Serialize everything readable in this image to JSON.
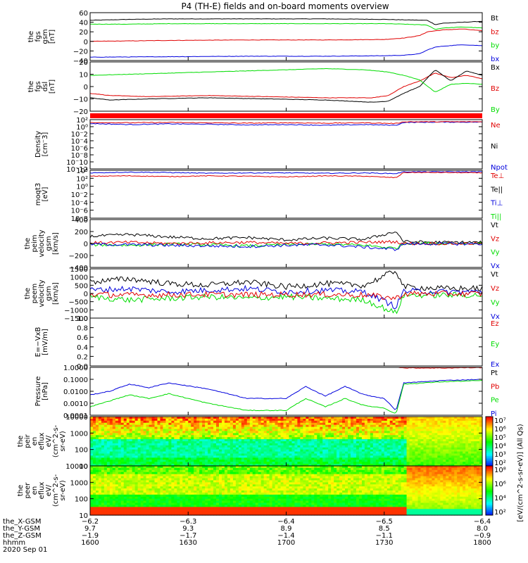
{
  "title": "P4 (TH-E) fields and on-board moments overview",
  "colors": {
    "black": "#000000",
    "red": "#e00000",
    "green": "#00dd00",
    "blue": "#0000dd",
    "strip": "#ff0000",
    "gridbg": "#ffffff"
  },
  "chart_data": [
    {
      "type": "line",
      "name": "fgs_gsm",
      "ylabel": [
        "the",
        "fgs",
        "gsm",
        "[nT]"
      ],
      "yticks": [
        "60",
        "40",
        "20",
        "0",
        "−20",
        "−40"
      ],
      "ylim": [
        -40,
        60
      ],
      "legend": [
        {
          "label": "Bt",
          "color": "#000000"
        },
        {
          "label": "bz",
          "color": "#e00000"
        },
        {
          "label": "by",
          "color": "#00dd00"
        },
        {
          "label": "bx",
          "color": "#0000dd"
        }
      ],
      "series": [
        {
          "name": "Bt",
          "color": "#000000",
          "x": [
            0,
            0.1,
            0.2,
            0.4,
            0.6,
            0.75,
            0.8,
            0.86,
            0.88,
            0.9,
            0.95,
            1.0
          ],
          "values": [
            44,
            46,
            47,
            47,
            47,
            46,
            45,
            44,
            35,
            38,
            40,
            42
          ]
        },
        {
          "name": "bz",
          "color": "#e00000",
          "x": [
            0,
            0.2,
            0.4,
            0.6,
            0.75,
            0.8,
            0.84,
            0.86,
            0.88,
            0.9,
            0.95,
            1.0
          ],
          "values": [
            0,
            2,
            3,
            3,
            4,
            7,
            12,
            20,
            22,
            24,
            26,
            22
          ]
        },
        {
          "name": "by",
          "color": "#00dd00",
          "x": [
            0,
            0.1,
            0.2,
            0.4,
            0.6,
            0.75,
            0.8,
            0.86,
            0.88,
            0.9,
            0.95,
            1.0
          ],
          "values": [
            36,
            36,
            37,
            37,
            37,
            37,
            36,
            34,
            25,
            28,
            30,
            28
          ]
        },
        {
          "name": "bx",
          "color": "#0000dd",
          "x": [
            0,
            0.2,
            0.4,
            0.6,
            0.75,
            0.8,
            0.84,
            0.86,
            0.88,
            0.9,
            0.95,
            1.0
          ],
          "values": [
            -33,
            -32,
            -31,
            -31,
            -30,
            -29,
            -26,
            -18,
            -12,
            -10,
            -7,
            -9
          ]
        }
      ]
    },
    {
      "type": "line",
      "name": "fgs_dsl",
      "ylabel": [
        "the",
        "fgs",
        "dsl",
        "[nT]"
      ],
      "yticks": [
        "20",
        "10",
        "0",
        "−10",
        "−20"
      ],
      "ylim": [
        -22,
        22
      ],
      "legend": [
        {
          "label": "Bx",
          "color": "#000000"
        },
        {
          "label": "Bz",
          "color": "#e00000"
        },
        {
          "label": "By",
          "color": "#00dd00"
        }
      ],
      "series": [
        {
          "name": "Bz",
          "color": "#e00000",
          "x": [
            0,
            0.05,
            0.15,
            0.3,
            0.45,
            0.6,
            0.72,
            0.76,
            0.8,
            0.84,
            0.88,
            0.92,
            0.96,
            1.0
          ],
          "values": [
            -6,
            -8,
            -9,
            -8,
            -9,
            -10,
            -10,
            -8,
            0,
            5,
            12,
            8,
            10,
            7
          ]
        },
        {
          "name": "Bx",
          "color": "#000000",
          "x": [
            0,
            0.05,
            0.15,
            0.3,
            0.45,
            0.6,
            0.72,
            0.76,
            0.8,
            0.84,
            0.88,
            0.92,
            0.96,
            1.0
          ],
          "values": [
            -10,
            -12,
            -11,
            -10,
            -11,
            -12,
            -14,
            -13,
            -6,
            0,
            15,
            5,
            14,
            10
          ]
        },
        {
          "name": "By",
          "color": "#00dd00",
          "x": [
            0,
            0.1,
            0.2,
            0.3,
            0.4,
            0.5,
            0.6,
            0.7,
            0.76,
            0.8,
            0.84,
            0.88,
            0.92,
            0.96,
            1.0
          ],
          "values": [
            10,
            11,
            12,
            13,
            14,
            15,
            16,
            15,
            13,
            10,
            6,
            -5,
            2,
            3,
            2
          ]
        }
      ]
    },
    {
      "type": "line",
      "name": "density",
      "ylabel": [
        "Density",
        "[cm⁻3]"
      ],
      "yticks": [
        "10²",
        "10⁰",
        "10⁻2",
        "10⁻4",
        "10⁻6",
        "10⁻8",
        "10⁻10",
        "10⁻12"
      ],
      "ylim": [
        -12,
        2
      ],
      "scale": "log",
      "legend": [
        {
          "label": "Ne",
          "color": "#e00000"
        },
        {
          "label": "Ni",
          "color": "#000000"
        },
        {
          "label": "Npot",
          "color": "#0000dd"
        }
      ],
      "series": [
        {
          "name": "Npot",
          "color": "#0000dd",
          "x": [
            0,
            0.1,
            0.2,
            0.3,
            0.4,
            0.5,
            0.6,
            0.7,
            0.78,
            0.8,
            0.9,
            1.0
          ],
          "values": [
            0.9,
            0.6,
            0.8,
            0.7,
            0.5,
            0.6,
            0.4,
            0.6,
            0.4,
            1.2,
            1.3,
            1.3
          ]
        },
        {
          "name": "Ne",
          "color": "#e00000",
          "x": [
            0,
            0.1,
            0.2,
            0.3,
            0.4,
            0.5,
            0.6,
            0.7,
            0.78,
            0.8,
            0.9,
            1.0
          ],
          "values": [
            1.2,
            1.1,
            1.2,
            1.1,
            1.0,
            1.1,
            1.0,
            1.1,
            0.9,
            1.4,
            1.4,
            1.4
          ]
        }
      ]
    },
    {
      "type": "line",
      "name": "moms_temp",
      "ylabel": [
        "moqt3",
        "[eV]"
      ],
      "yticks": [
        "10⁴",
        "10²",
        "10⁰",
        "10⁻2",
        "10⁻4",
        "10⁻6",
        "10⁻8"
      ],
      "ylim": [
        -9,
        4
      ],
      "scale": "log",
      "legend": [
        {
          "label": "Te⊥",
          "color": "#e00000"
        },
        {
          "label": "Te||",
          "color": "#000000"
        },
        {
          "label": "Ti⊥",
          "color": "#0000dd"
        },
        {
          "label": "Ti||",
          "color": "#00dd00"
        }
      ],
      "series": [
        {
          "name": "Ti",
          "color": "#0000dd",
          "x": [
            0,
            0.1,
            0.2,
            0.3,
            0.4,
            0.5,
            0.6,
            0.7,
            0.78,
            0.8,
            0.9,
            1.0
          ],
          "values": [
            3.3,
            3.5,
            3.4,
            3.2,
            3.3,
            3.3,
            3.2,
            3.3,
            3.1,
            3.6,
            3.6,
            3.6
          ]
        },
        {
          "name": "Te",
          "color": "#e00000",
          "x": [
            0,
            0.1,
            0.2,
            0.3,
            0.4,
            0.5,
            0.6,
            0.7,
            0.78,
            0.8,
            0.9,
            1.0
          ],
          "values": [
            2.4,
            2.5,
            2.3,
            2.5,
            2.4,
            2.2,
            2.5,
            2.4,
            2.0,
            3.4,
            3.4,
            3.3
          ]
        }
      ]
    },
    {
      "type": "line",
      "name": "peim_velocity",
      "ylabel": [
        "the",
        "peim",
        "velocity",
        "gsm",
        "[km/s]"
      ],
      "yticks": [
        "400",
        "200",
        "0",
        "−200",
        "−400"
      ],
      "ylim": [
        -400,
        400
      ],
      "legend": [
        {
          "label": "Vt",
          "color": "#000000"
        },
        {
          "label": "Vz",
          "color": "#e00000"
        },
        {
          "label": "Vy",
          "color": "#00dd00"
        },
        {
          "label": "Vx",
          "color": "#0000dd"
        }
      ],
      "series": [
        {
          "name": "Vt",
          "color": "#000000",
          "x": [
            0,
            0.1,
            0.2,
            0.3,
            0.4,
            0.5,
            0.6,
            0.7,
            0.78,
            0.8,
            0.9,
            1.0
          ],
          "values": [
            120,
            150,
            110,
            80,
            100,
            60,
            90,
            70,
            200,
            30,
            20,
            20
          ]
        },
        {
          "name": "Vy",
          "color": "#00dd00",
          "x": [
            0,
            0.1,
            0.2,
            0.3,
            0.4,
            0.5,
            0.6,
            0.7,
            0.78,
            0.8,
            0.9,
            1.0
          ],
          "values": [
            -20,
            -30,
            -10,
            -20,
            -40,
            -20,
            -10,
            -30,
            -80,
            5,
            5,
            5
          ]
        },
        {
          "name": "Vz",
          "color": "#e00000",
          "x": [
            0,
            0.1,
            0.2,
            0.3,
            0.4,
            0.5,
            0.6,
            0.7,
            0.78,
            0.8,
            0.9,
            1.0
          ],
          "values": [
            10,
            20,
            0,
            10,
            20,
            0,
            10,
            20,
            30,
            0,
            0,
            0
          ]
        },
        {
          "name": "Vx",
          "color": "#0000dd",
          "x": [
            0,
            0.1,
            0.2,
            0.3,
            0.4,
            0.5,
            0.6,
            0.7,
            0.78,
            0.8,
            0.9,
            1.0
          ],
          "values": [
            -10,
            -20,
            -30,
            -40,
            -50,
            -30,
            -20,
            -60,
            -100,
            -5,
            -5,
            -5
          ]
        }
      ]
    },
    {
      "type": "line",
      "name": "peem_velocity",
      "ylabel": [
        "the",
        "peem",
        "velocity",
        "gsm",
        "[km/s]"
      ],
      "yticks": [
        "1500",
        "1000",
        "500",
        "0",
        "−500",
        "−1000",
        "−1500"
      ],
      "ylim": [
        -1500,
        1500
      ],
      "legend": [
        {
          "label": "Vt",
          "color": "#000000"
        },
        {
          "label": "Vz",
          "color": "#e00000"
        },
        {
          "label": "Vy",
          "color": "#00dd00"
        },
        {
          "label": "Vx",
          "color": "#0000dd"
        }
      ],
      "series": [
        {
          "name": "Vt",
          "color": "#000000",
          "x": [
            0,
            0.1,
            0.2,
            0.3,
            0.4,
            0.5,
            0.6,
            0.7,
            0.78,
            0.8,
            0.9,
            1.0
          ],
          "values": [
            700,
            900,
            600,
            500,
            700,
            400,
            600,
            500,
            1400,
            400,
            300,
            300
          ]
        },
        {
          "name": "Vy",
          "color": "#00dd00",
          "x": [
            0,
            0.1,
            0.2,
            0.3,
            0.4,
            0.5,
            0.6,
            0.7,
            0.78,
            0.8,
            0.9,
            1.0
          ],
          "values": [
            -200,
            -400,
            -300,
            -200,
            -300,
            -200,
            -300,
            -400,
            -1200,
            -100,
            -100,
            -100
          ]
        },
        {
          "name": "Vx",
          "color": "#0000dd",
          "x": [
            0,
            0.1,
            0.2,
            0.3,
            0.4,
            0.5,
            0.6,
            0.7,
            0.78,
            0.8,
            0.9,
            1.0
          ],
          "values": [
            200,
            300,
            100,
            200,
            300,
            100,
            200,
            100,
            -800,
            150,
            100,
            100
          ]
        },
        {
          "name": "Vz",
          "color": "#e00000",
          "x": [
            0,
            0.1,
            0.2,
            0.3,
            0.4,
            0.5,
            0.6,
            0.7,
            0.78,
            0.8,
            0.9,
            1.0
          ],
          "values": [
            -50,
            -100,
            -80,
            -60,
            -80,
            -70,
            -60,
            -90,
            -300,
            -20,
            -20,
            -20
          ]
        }
      ]
    },
    {
      "type": "line",
      "name": "efield",
      "ylabel": [
        "E=−VxB",
        "[mV/m]"
      ],
      "yticks": [
        "1.0",
        "0.8",
        "0.6",
        "0.4",
        "0.2",
        "0.0"
      ],
      "ylim": [
        0,
        1
      ],
      "legend": [
        {
          "label": "Ez",
          "color": "#e00000"
        },
        {
          "label": "Ey",
          "color": "#00dd00"
        },
        {
          "label": "Ex",
          "color": "#0000dd"
        }
      ],
      "series": []
    },
    {
      "type": "line",
      "name": "pressure",
      "ylabel": [
        "Pressure",
        "[nPa]"
      ],
      "yticks": [
        "1.0000",
        "0.1000",
        "0.0100",
        "0.0010",
        "0.0001"
      ],
      "ylim": [
        -4,
        0
      ],
      "scale": "log",
      "legend": [
        {
          "label": "Pt",
          "color": "#000000"
        },
        {
          "label": "Pb",
          "color": "#e00000"
        },
        {
          "label": "Pe",
          "color": "#00dd00"
        },
        {
          "label": "Pi",
          "color": "#0000dd"
        }
      ],
      "series": [
        {
          "name": "Pb",
          "color": "#e00000",
          "x": [
            0,
            0.2,
            0.4,
            0.6,
            0.78,
            0.8,
            0.9,
            1.0
          ],
          "values": [
            0.05,
            0.05,
            0.05,
            0.05,
            0.05,
            -0.05,
            -0.05,
            -0.02
          ]
        },
        {
          "name": "Pi",
          "color": "#0000dd",
          "x": [
            0,
            0.05,
            0.1,
            0.15,
            0.2,
            0.3,
            0.4,
            0.5,
            0.55,
            0.6,
            0.65,
            0.7,
            0.75,
            0.78,
            0.8,
            0.85,
            0.9,
            1.0
          ],
          "values": [
            -2.3,
            -2,
            -1.4,
            -1.7,
            -1.3,
            -1.8,
            -2.6,
            -2.6,
            -1.6,
            -2.4,
            -1.6,
            -2.3,
            -2.6,
            -3.6,
            -1.3,
            -1.2,
            -1.1,
            -1.0
          ]
        },
        {
          "name": "Pe",
          "color": "#00dd00",
          "x": [
            0,
            0.05,
            0.1,
            0.15,
            0.2,
            0.3,
            0.4,
            0.5,
            0.55,
            0.6,
            0.65,
            0.7,
            0.75,
            0.78,
            0.8,
            0.85,
            0.9,
            1.0
          ],
          "values": [
            -3.3,
            -2.8,
            -2.3,
            -2.6,
            -2.2,
            -3,
            -3.6,
            -3.6,
            -2.6,
            -3.3,
            -2.6,
            -3.2,
            -3.4,
            -3.9,
            -1.4,
            -1.3,
            -1.2,
            -1.1
          ]
        }
      ]
    },
    {
      "type": "heatmap",
      "name": "peir_eflux",
      "ylabel": [
        "the",
        "peir",
        "en",
        "eflux",
        "eV/",
        "(cm^2-s-",
        "sr-eV)"
      ],
      "yticks": [
        "10000",
        "1000",
        "100",
        "10"
      ],
      "ylim": [
        1,
        4.3
      ],
      "scale": "log",
      "colorbar_ticks": [
        "10⁷",
        "10⁶",
        "10⁵",
        "10⁴",
        "10³",
        "10²"
      ]
    },
    {
      "type": "heatmap",
      "name": "peer_eflux",
      "ylabel": [
        "the",
        "peer",
        "en",
        "eflux",
        "eV/",
        "(cm^2-s-",
        "sr-eV)"
      ],
      "yticks": [
        "10000",
        "1000",
        "100",
        "10"
      ],
      "ylim": [
        0.8,
        4.3
      ],
      "scale": "log",
      "colorbar_ticks": [
        "10⁸",
        "10⁶",
        "10⁴",
        "10²"
      ]
    }
  ],
  "colorbar_label": "[eV/(cm^2-s-sr-eV)] (All Qs)",
  "axis": {
    "rows": [
      {
        "label": "the_X-GSM",
        "values": [
          "−6.2",
          "−6.3",
          "−6.4",
          "−6.5",
          "−6.4"
        ]
      },
      {
        "label": "the_Y-GSM",
        "values": [
          "9.7",
          "9.3",
          "8.9",
          "8.5",
          "8.0"
        ]
      },
      {
        "label": "the_Z-GSM",
        "values": [
          "−1.9",
          "−1.7",
          "−1.4",
          "−1.1",
          "−0.9"
        ]
      },
      {
        "label": "hhmm",
        "values": [
          "1600",
          "1630",
          "1700",
          "1730",
          "1800"
        ]
      }
    ],
    "date": "2020 Sep 01"
  }
}
